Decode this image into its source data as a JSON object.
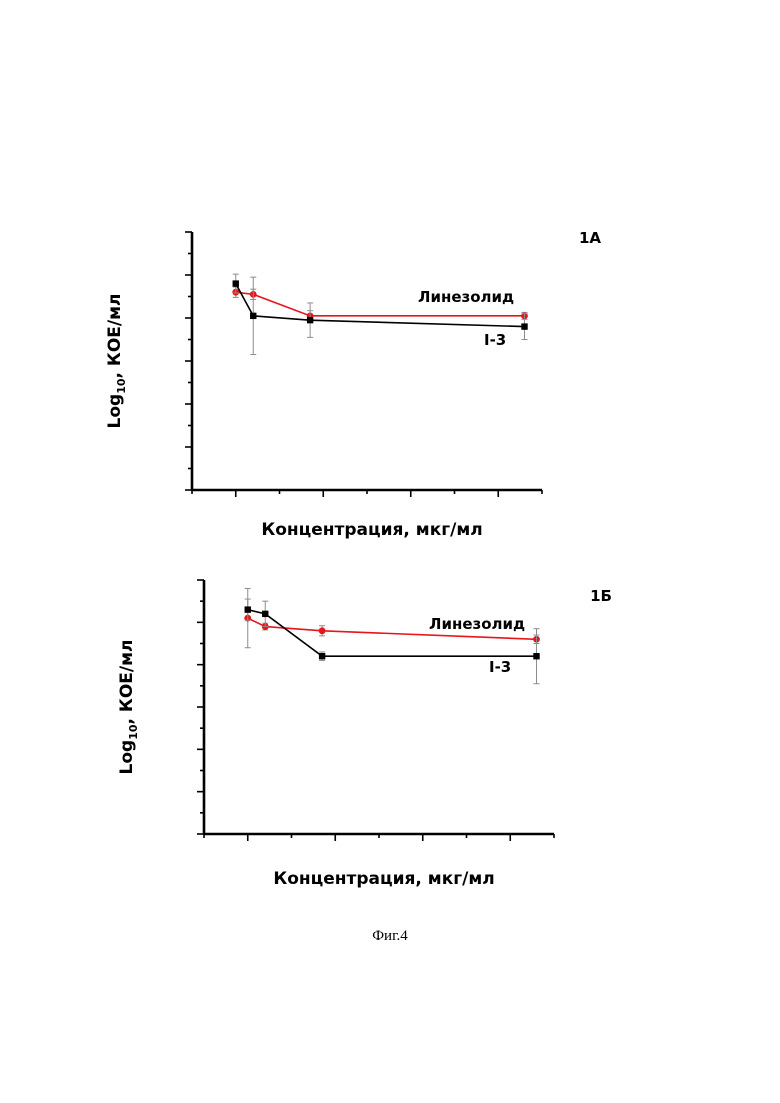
{
  "chart_data": [
    {
      "type": "line",
      "panel_label": "1А",
      "xlabel": "Концентрация, мкг/мл",
      "ylabel_main": "Log",
      "ylabel_sub": "10",
      "ylabel_rest": ", КОЕ/мл",
      "xlim": [
        0,
        8
      ],
      "ylim": [
        0,
        6
      ],
      "series": [
        {
          "name": "Линезолид",
          "color": "#e8141c",
          "marker": "circle",
          "x": [
            1.0,
            1.4,
            2.7,
            7.6
          ],
          "y": [
            4.6,
            4.55,
            4.05,
            4.05
          ],
          "err": [
            0.12,
            0.12,
            0.12,
            0.08
          ]
        },
        {
          "name": "I-3",
          "color": "#000000",
          "marker": "square",
          "x": [
            1.0,
            1.4,
            2.7,
            7.6
          ],
          "y": [
            4.8,
            4.05,
            3.95,
            3.8
          ],
          "err": [
            0.22,
            0.9,
            0.4,
            0.3
          ]
        }
      ]
    },
    {
      "type": "line",
      "panel_label": "1Б",
      "xlabel": "Концентрация, мкг/мл",
      "ylabel_main": "Log",
      "ylabel_sub": "10",
      "ylabel_rest": ", КОЕ/мл",
      "xlim": [
        0,
        8
      ],
      "ylim": [
        0,
        6
      ],
      "series": [
        {
          "name": "Линезолид",
          "color": "#e8141c",
          "marker": "circle",
          "x": [
            1.0,
            1.4,
            2.7,
            7.6
          ],
          "y": [
            5.1,
            4.9,
            4.8,
            4.6
          ],
          "err": [
            0.7,
            0.08,
            0.12,
            0.1
          ]
        },
        {
          "name": "I-3",
          "color": "#000000",
          "marker": "square",
          "x": [
            1.0,
            1.4,
            2.7,
            7.6
          ],
          "y": [
            5.3,
            5.2,
            4.2,
            4.2
          ],
          "err": [
            0.25,
            0.3,
            0.1,
            0.65
          ]
        }
      ]
    }
  ],
  "caption": "Фиг.4"
}
